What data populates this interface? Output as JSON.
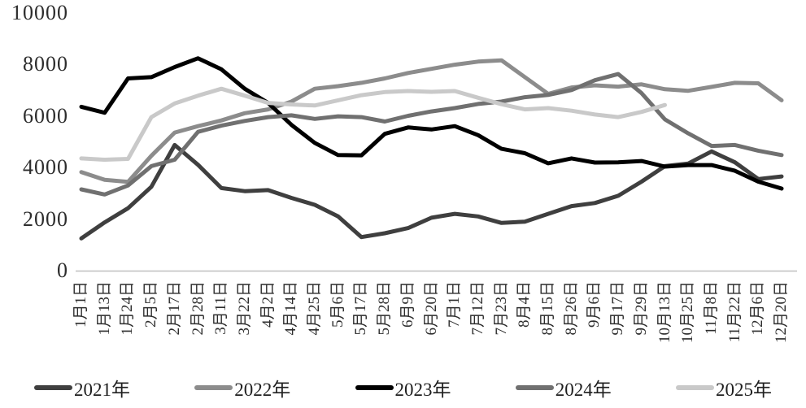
{
  "chart_data": {
    "type": "line",
    "title": "",
    "xlabel": "",
    "ylabel": "",
    "grid": "off",
    "legend_position": "bottom",
    "y_axis": {
      "min": 0,
      "max": 10000,
      "step": 2000,
      "tick_labels": [
        "0",
        "2000",
        "4000",
        "6000",
        "8000",
        "10000"
      ]
    },
    "x_axis": {
      "tick_label_rotation_deg": -90
    },
    "categories": [
      "1月1日",
      "1月13日",
      "1月24日",
      "2月5日",
      "2月17日",
      "2月28日",
      "3月11日",
      "3月22日",
      "4月2日",
      "4月14日",
      "4月25日",
      "5月6日",
      "5月17日",
      "5月28日",
      "6月9日",
      "6月20日",
      "7月1日",
      "7月12日",
      "7月23日",
      "8月4日",
      "8月15日",
      "8月26日",
      "9月6日",
      "9月17日",
      "9月29日",
      "10月13日",
      "10月25日",
      "11月8日",
      "11月22日",
      "12月6日",
      "12月20日"
    ],
    "series": [
      {
        "name": "2021年",
        "color": "#3f3f3f",
        "values": [
          1250,
          1870,
          2420,
          3250,
          4870,
          4100,
          3200,
          3080,
          3120,
          2820,
          2550,
          2100,
          1300,
          1450,
          1650,
          2050,
          2200,
          2100,
          1850,
          1900,
          2200,
          2500,
          2620,
          2900,
          3450,
          4050,
          4150,
          4620,
          4200,
          3550,
          3650
        ]
      },
      {
        "name": "2022年",
        "color": "#8c8c8c",
        "values": [
          3820,
          3520,
          3440,
          4450,
          5350,
          5600,
          5820,
          6100,
          6250,
          6550,
          7050,
          7150,
          7280,
          7450,
          7660,
          7820,
          7980,
          8100,
          8150,
          7500,
          6850,
          7100,
          7180,
          7130,
          7220,
          7030,
          6970,
          7120,
          7280,
          7260,
          6600
        ]
      },
      {
        "name": "2023年",
        "color": "#000000",
        "values": [
          6350,
          6120,
          7450,
          7500,
          7890,
          8230,
          7800,
          7050,
          6500,
          5650,
          4950,
          4480,
          4470,
          5300,
          5550,
          5470,
          5600,
          5250,
          4720,
          4550,
          4160,
          4350,
          4190,
          4200,
          4250,
          4030,
          4090,
          4090,
          3870,
          3450,
          3180
        ]
      },
      {
        "name": "2024年",
        "color": "#707070",
        "values": [
          3150,
          2950,
          3300,
          4050,
          4300,
          5380,
          5620,
          5800,
          5950,
          6020,
          5880,
          5980,
          5950,
          5780,
          6000,
          6170,
          6300,
          6460,
          6550,
          6720,
          6810,
          7000,
          7380,
          7620,
          6880,
          5860,
          5320,
          4830,
          4870,
          4650,
          4480
        ]
      },
      {
        "name": "2025年",
        "color": "#c9c9c9",
        "values": [
          4350,
          4300,
          4330,
          5950,
          6480,
          6780,
          7050,
          6780,
          6500,
          6440,
          6400,
          6600,
          6800,
          6920,
          6960,
          6930,
          6960,
          6700,
          6450,
          6250,
          6300,
          6200,
          6050,
          5950,
          6150,
          6420,
          null,
          null,
          null,
          null,
          null
        ]
      }
    ],
    "axis_line_color": "#bfbfbf"
  }
}
